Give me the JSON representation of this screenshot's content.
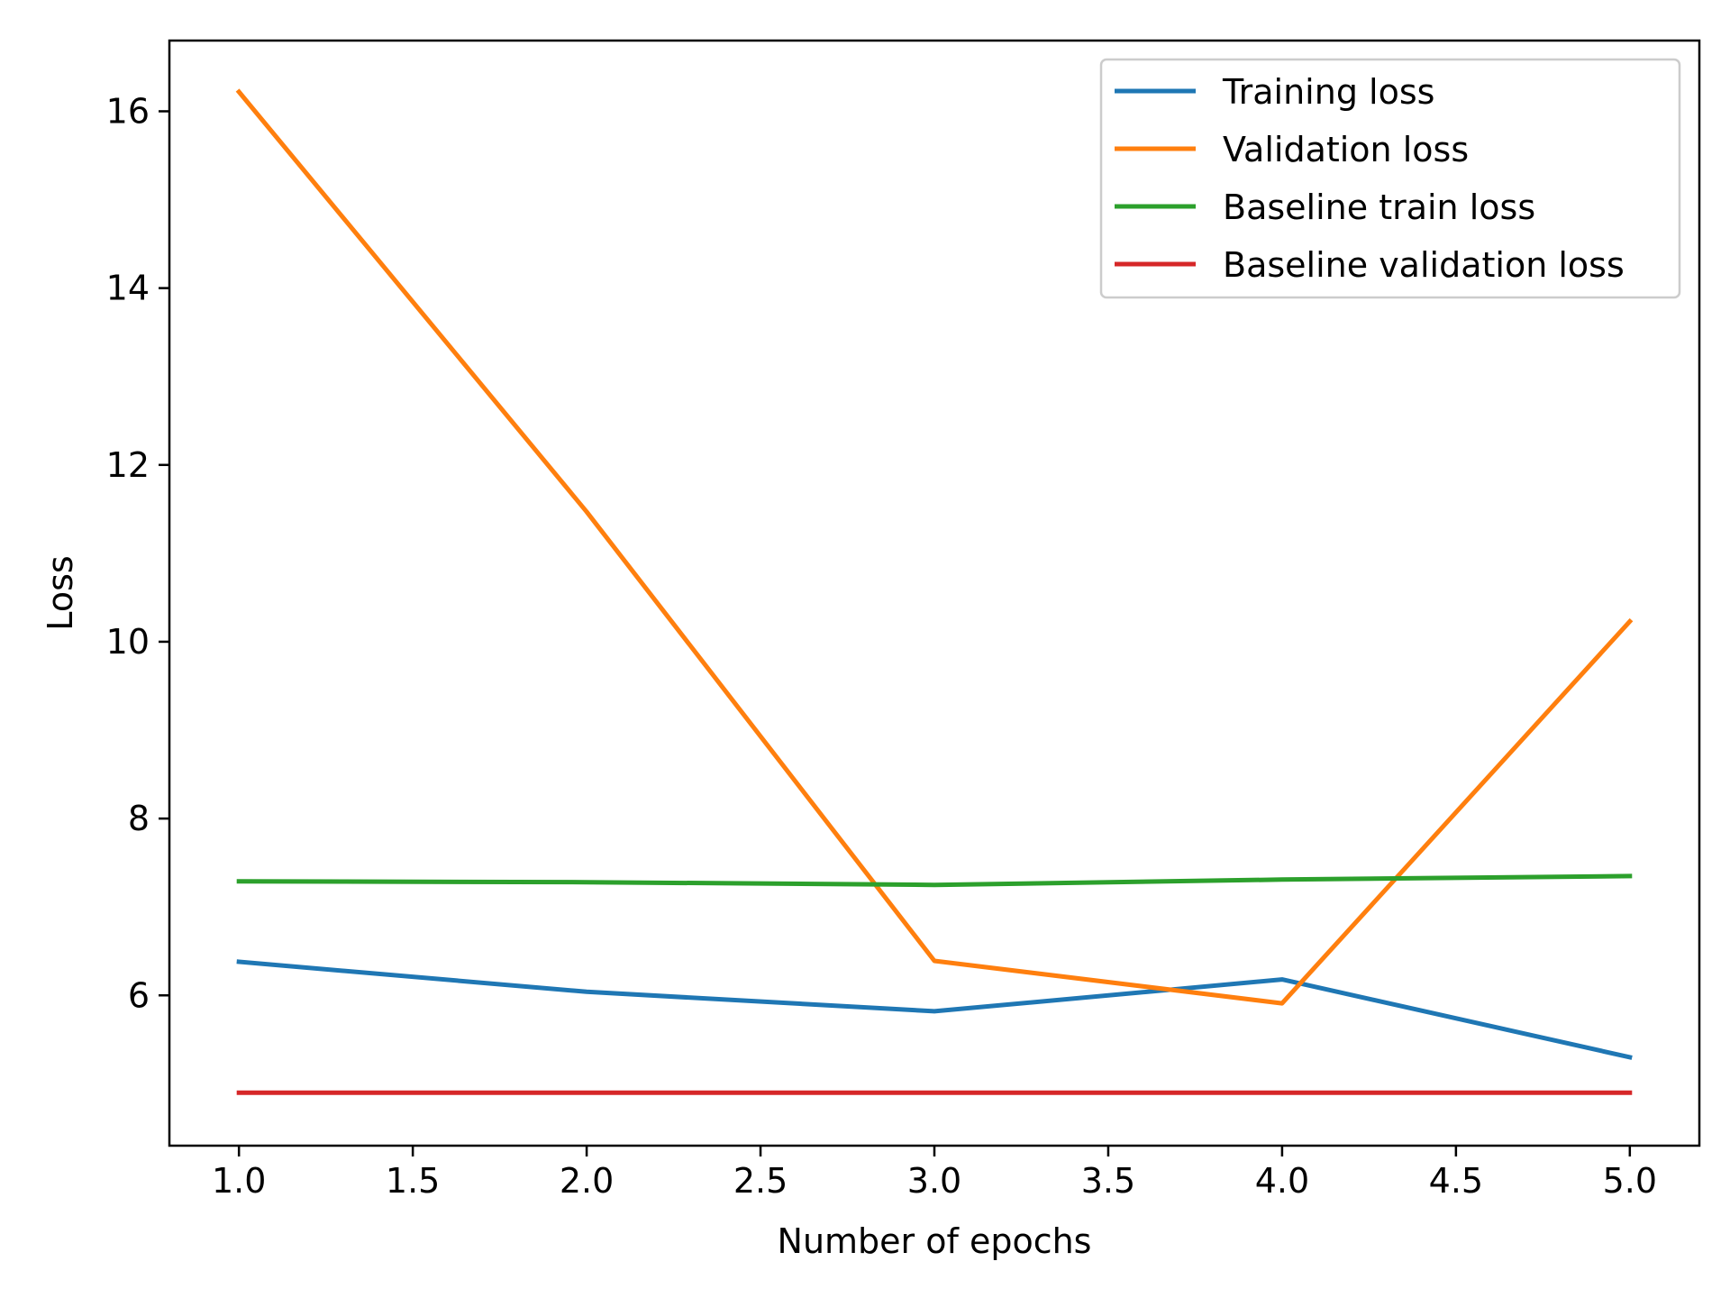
{
  "chart_data": {
    "type": "line",
    "title": "",
    "xlabel": "Number of epochs",
    "ylabel": "Loss",
    "x": [
      1,
      2,
      3,
      4,
      5
    ],
    "xlim": [
      0.8,
      5.2
    ],
    "ylim": [
      4.3,
      16.8
    ],
    "xticks": [
      1.0,
      1.5,
      2.0,
      2.5,
      3.0,
      3.5,
      4.0,
      4.5,
      5.0
    ],
    "xtick_labels": [
      "1.0",
      "1.5",
      "2.0",
      "2.5",
      "3.0",
      "3.5",
      "4.0",
      "4.5",
      "5.0"
    ],
    "yticks": [
      6,
      8,
      10,
      12,
      14,
      16
    ],
    "ytick_labels": [
      "6",
      "8",
      "10",
      "12",
      "14",
      "16"
    ],
    "grid": false,
    "legend_position": "top-right",
    "series": [
      {
        "name": "Training loss",
        "color": "#1f77b4",
        "values": [
          6.38,
          6.04,
          5.82,
          6.18,
          5.3
        ]
      },
      {
        "name": "Validation loss",
        "color": "#ff7f0e",
        "values": [
          16.22,
          11.47,
          6.39,
          5.91,
          10.23
        ]
      },
      {
        "name": "Baseline train loss",
        "color": "#2ca02c",
        "values": [
          7.29,
          7.28,
          7.25,
          7.31,
          7.35
        ]
      },
      {
        "name": "Baseline validation loss",
        "color": "#d62728",
        "values": [
          4.9,
          4.9,
          4.9,
          4.9,
          4.9
        ]
      }
    ]
  }
}
